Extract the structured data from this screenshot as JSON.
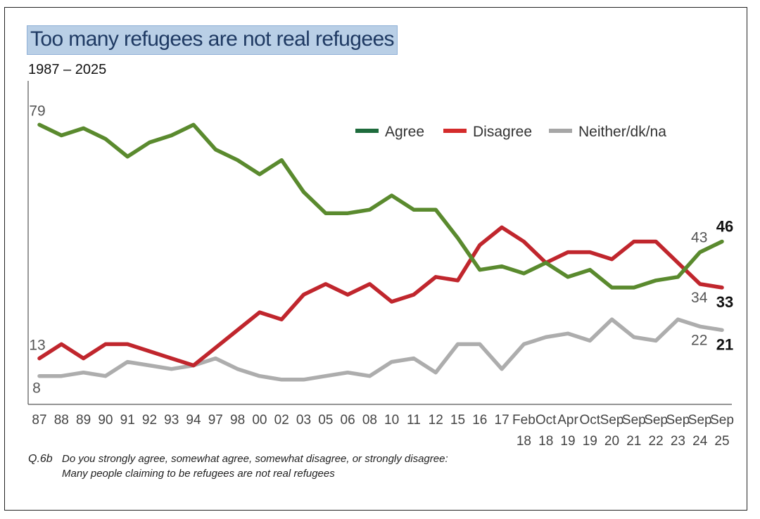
{
  "title": "Too many refugees are not real refugees",
  "subtitle": "1987 – 2025",
  "question": {
    "id": "Q.6b",
    "text": "Do you strongly agree, somewhat agree, somewhat disagree, or strongly disagree:",
    "statement": "Many people claiming to be refugees are not real refugees"
  },
  "chart_data": {
    "type": "line",
    "title": "Too many refugees are not real refugees",
    "subtitle": "1987 – 2025",
    "x_labels": [
      [
        "87"
      ],
      [
        "88"
      ],
      [
        "89"
      ],
      [
        "90"
      ],
      [
        "91"
      ],
      [
        "92"
      ],
      [
        "93"
      ],
      [
        "94"
      ],
      [
        "97"
      ],
      [
        "98"
      ],
      [
        "00"
      ],
      [
        "02"
      ],
      [
        "03"
      ],
      [
        "05"
      ],
      [
        "06"
      ],
      [
        "08"
      ],
      [
        "10"
      ],
      [
        "11"
      ],
      [
        "12"
      ],
      [
        "15"
      ],
      [
        "16"
      ],
      [
        "17"
      ],
      [
        "Feb",
        "18"
      ],
      [
        "Oct",
        "18"
      ],
      [
        "Apr",
        "19"
      ],
      [
        "Oct",
        "19"
      ],
      [
        "Sep",
        "20"
      ],
      [
        "Sep",
        "21"
      ],
      [
        "Sep",
        "22"
      ],
      [
        "Sep",
        "23"
      ],
      [
        "Sep",
        "24"
      ],
      [
        "Sep",
        "25"
      ]
    ],
    "ylim": [
      0,
      90
    ],
    "grid": false,
    "legend_position": "top-right",
    "series": [
      {
        "name": "Agree",
        "color": "#5a8a2e",
        "legend_color": "#1e6b3c",
        "values": [
          79,
          76,
          78,
          75,
          70,
          74,
          76,
          79,
          72,
          69,
          65,
          69,
          60,
          54,
          54,
          55,
          59,
          55,
          55,
          47,
          38,
          39,
          37,
          40,
          36,
          38,
          33,
          33,
          35,
          36,
          43,
          46
        ]
      },
      {
        "name": "Disagree",
        "color": "#c0262d",
        "legend_color": "#d42b2b",
        "values": [
          13,
          17,
          13,
          17,
          17,
          15,
          13,
          11,
          16,
          21,
          26,
          24,
          31,
          34,
          31,
          34,
          29,
          31,
          36,
          35,
          45,
          50,
          46,
          40,
          43,
          43,
          41,
          46,
          46,
          40,
          34,
          33
        ]
      },
      {
        "name": "Neither/dk/na",
        "color": "#adadad",
        "legend_color": "#a6a6a6",
        "values": [
          8,
          8,
          9,
          8,
          12,
          11,
          10,
          11,
          13,
          10,
          8,
          7,
          7,
          8,
          9,
          8,
          12,
          13,
          9,
          17,
          17,
          10,
          17,
          19,
          20,
          18,
          24,
          19,
          18,
          24,
          22,
          21
        ]
      }
    ],
    "annotations": [
      {
        "series": 0,
        "index": 0,
        "text": "79",
        "bold": false
      },
      {
        "series": 1,
        "index": 0,
        "text": "13",
        "bold": false
      },
      {
        "series": 2,
        "index": 0,
        "text": "8",
        "bold": false
      },
      {
        "series": 0,
        "index": 30,
        "text": "43",
        "bold": false
      },
      {
        "series": 0,
        "index": 31,
        "text": "46",
        "bold": true
      },
      {
        "series": 1,
        "index": 30,
        "text": "34",
        "bold": false
      },
      {
        "series": 1,
        "index": 31,
        "text": "33",
        "bold": true
      },
      {
        "series": 2,
        "index": 30,
        "text": "22",
        "bold": false
      },
      {
        "series": 2,
        "index": 31,
        "text": "21",
        "bold": true
      }
    ]
  }
}
